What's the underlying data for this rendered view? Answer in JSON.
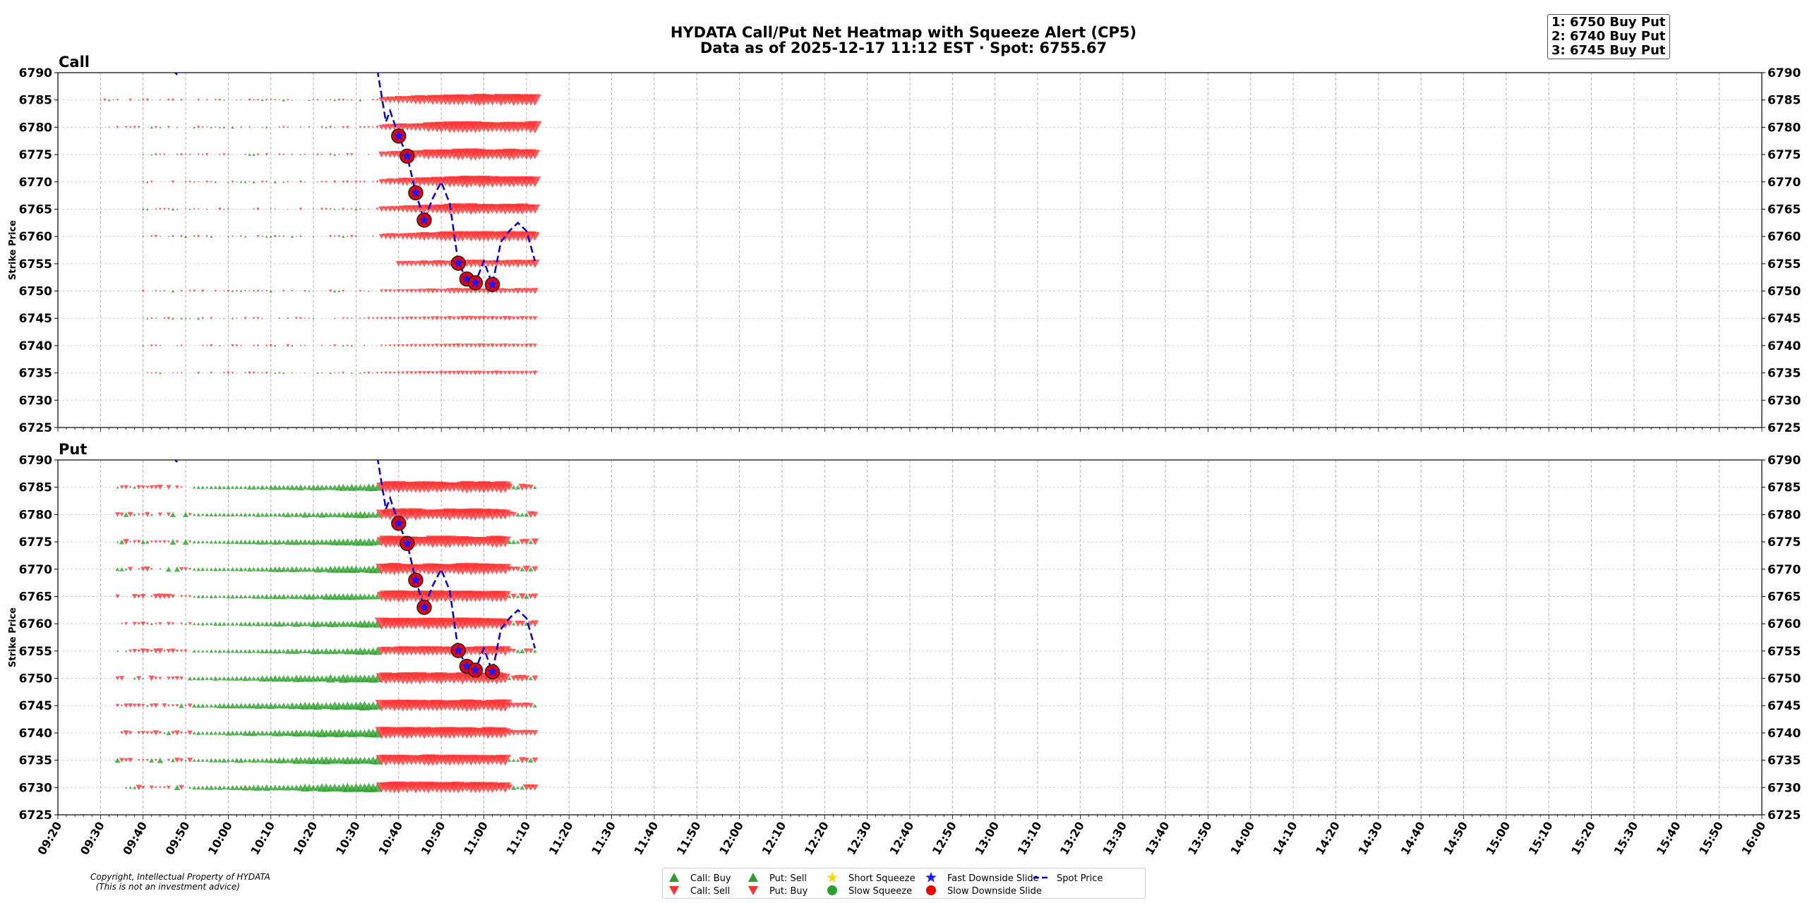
{
  "title": {
    "line1": "HYDATA Call/Put Net Heatmap with Squeeze Alert (CP5)",
    "line2": "Data as of 2025-12-17 11:12 EST · Spot: 6755.67"
  },
  "alerts": [
    "1: 6750 Buy Put",
    "2: 6740 Buy Put",
    "3: 6745 Buy Put"
  ],
  "copyright": [
    "Copyright, Intellectual Property of HYDATA",
    "  (This is not an investment advice)"
  ],
  "colors": {
    "buy_green": "#2ca02c",
    "sell_red": "#ff3333",
    "spot": "#0000dd",
    "alert_circle": "#ee0000",
    "star": "#1a1aff",
    "squeeze_gold": "#ffd700"
  },
  "chart_data": {
    "type": "scatter",
    "xlabel": "",
    "ylabel": "Strike Price",
    "x_range": [
      "09:20",
      "16:00"
    ],
    "x_ticks": [
      "09:20",
      "09:30",
      "09:40",
      "09:50",
      "10:00",
      "10:10",
      "10:20",
      "10:30",
      "10:40",
      "10:50",
      "11:00",
      "11:10",
      "11:20",
      "11:30",
      "11:40",
      "11:50",
      "12:00",
      "12:10",
      "12:20",
      "12:30",
      "12:40",
      "12:50",
      "13:00",
      "13:10",
      "13:20",
      "13:30",
      "13:40",
      "13:50",
      "14:00",
      "14:10",
      "14:20",
      "14:30",
      "14:40",
      "14:50",
      "15:00",
      "15:10",
      "15:20",
      "15:30",
      "15:40",
      "15:50",
      "16:00"
    ],
    "ylim": [
      6725,
      6790
    ],
    "y_ticks": [
      6725,
      6730,
      6735,
      6740,
      6745,
      6750,
      6755,
      6760,
      6765,
      6770,
      6775,
      6780,
      6785,
      6790
    ],
    "grid": true,
    "legend_position": "bottom-center",
    "legend": [
      {
        "label": "Call: Buy",
        "marker": "triangle-up",
        "color": "#2ca02c"
      },
      {
        "label": "Call: Sell",
        "marker": "triangle-down",
        "color": "#ff3333"
      },
      {
        "label": "Put: Sell",
        "marker": "triangle-up",
        "color": "#2ca02c"
      },
      {
        "label": "Put: Buy",
        "marker": "triangle-down",
        "color": "#ff3333"
      },
      {
        "label": "Short Squeeze",
        "marker": "star",
        "color": "#ffd700"
      },
      {
        "label": "Slow Squeeze",
        "marker": "circle",
        "color": "#2ca02c"
      },
      {
        "label": "Fast Downside Slide",
        "marker": "star",
        "color": "#1a1aff"
      },
      {
        "label": "Slow Downside Slide",
        "marker": "circle",
        "color": "#ee0000"
      },
      {
        "label": "Spot Price",
        "marker": "dashed-line",
        "color": "#0000dd"
      }
    ],
    "panels": [
      "Call",
      "Put"
    ],
    "spot_price": [
      {
        "t": "09:47",
        "v": 6790.5
      },
      {
        "t": "09:48",
        "v": 6789.6
      },
      {
        "t": "10:35",
        "v": 6790.5
      },
      {
        "t": "10:37",
        "v": 6781.0
      },
      {
        "t": "10:38",
        "v": 6783.0
      },
      {
        "t": "10:40",
        "v": 6778.4
      },
      {
        "t": "10:42",
        "v": 6774.7
      },
      {
        "t": "10:44",
        "v": 6768.0
      },
      {
        "t": "10:46",
        "v": 6763.0
      },
      {
        "t": "10:48",
        "v": 6767.0
      },
      {
        "t": "10:50",
        "v": 6770.0
      },
      {
        "t": "10:52",
        "v": 6766.0
      },
      {
        "t": "10:54",
        "v": 6755.1
      },
      {
        "t": "10:56",
        "v": 6752.2
      },
      {
        "t": "10:58",
        "v": 6751.5
      },
      {
        "t": "11:00",
        "v": 6755.5
      },
      {
        "t": "11:02",
        "v": 6751.2
      },
      {
        "t": "11:04",
        "v": 6759.0
      },
      {
        "t": "11:06",
        "v": 6761.0
      },
      {
        "t": "11:08",
        "v": 6762.5
      },
      {
        "t": "11:10",
        "v": 6761.0
      },
      {
        "t": "11:12",
        "v": 6755.5
      }
    ],
    "alert_events": [
      {
        "t": "10:40",
        "v": 6778.4,
        "type": "Fast Downside Slide + Slow Downside Slide"
      },
      {
        "t": "10:42",
        "v": 6774.7,
        "type": "Fast Downside Slide + Slow Downside Slide"
      },
      {
        "t": "10:44",
        "v": 6768.0,
        "type": "Fast Downside Slide + Slow Downside Slide"
      },
      {
        "t": "10:46",
        "v": 6763.0,
        "type": "Fast Downside Slide + Slow Downside Slide"
      },
      {
        "t": "10:54",
        "v": 6755.1,
        "type": "Fast Downside Slide + Slow Downside Slide"
      },
      {
        "t": "10:56",
        "v": 6752.2,
        "type": "Fast Downside Slide + Slow Downside Slide"
      },
      {
        "t": "10:58",
        "v": 6751.5,
        "type": "Fast Downside Slide + Slow Downside Slide"
      },
      {
        "t": "11:02",
        "v": 6751.2,
        "type": "Fast Downside Slide + Slow Downside Slide"
      }
    ],
    "call_flow": {
      "strikes": [
        6735,
        6740,
        6745,
        6750,
        6755,
        6760,
        6765,
        6770,
        6775,
        6780,
        6785
      ],
      "start_times": [
        "09:40",
        "09:40",
        "09:40",
        "09:40",
        "10:40",
        "09:40",
        "09:40",
        "09:40",
        "09:40",
        "09:30",
        "09:30"
      ],
      "active_from": "10:36",
      "end_time": "11:12",
      "red_size_level": [
        0.12,
        0.12,
        0.15,
        0.3,
        0.55,
        0.85,
        0.95,
        1.0,
        1.0,
        1.0,
        1.0
      ],
      "note_sign": "net sell (red, down) dominates from 10:36"
    },
    "put_flow": {
      "strikes": [
        6730,
        6735,
        6740,
        6745,
        6750,
        6755,
        6760,
        6765,
        6770,
        6775,
        6780,
        6785
      ],
      "start_time": "09:34",
      "green_window": [
        "09:52",
        "10:35"
      ],
      "red_window": [
        "10:36",
        "11:12"
      ],
      "green_size_level": [
        1.0,
        0.9,
        1.0,
        1.0,
        0.95,
        0.7,
        0.75,
        0.7,
        0.75,
        0.75,
        0.7,
        0.7
      ],
      "red_size_level": [
        0.95,
        0.9,
        1.0,
        1.0,
        1.0,
        0.7,
        1.0,
        1.0,
        1.0,
        1.0,
        1.0,
        1.0
      ],
      "note_sign": "put sell (green, up) 09:52-10:35, put buy (red, down) after 10:36"
    }
  }
}
